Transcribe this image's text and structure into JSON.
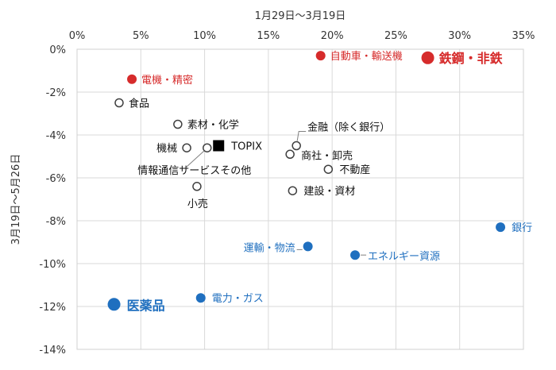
{
  "chart_data": {
    "type": "scatter",
    "title": "",
    "xlabel": "1月29日～3月19日",
    "ylabel": "3月19日～5月26日",
    "x_axis_position": "top",
    "xlim": [
      0,
      35
    ],
    "ylim": [
      -14,
      0
    ],
    "x_ticks": [
      "0%",
      "5%",
      "10%",
      "15%",
      "20%",
      "25%",
      "30%",
      "35%"
    ],
    "y_ticks": [
      "0%",
      "-2%",
      "-4%",
      "-6%",
      "-8%",
      "-10%",
      "-12%",
      "-14%"
    ],
    "grid": true,
    "colors": {
      "gray": "#404040",
      "red": "#d62b2b",
      "blue": "#1f6fbf",
      "black": "#000000"
    },
    "points": [
      {
        "label": "鉄鋼・非鉄",
        "x": 27.5,
        "y": -0.4,
        "group": "red",
        "size": "large"
      },
      {
        "label": "自動車・輸送機",
        "x": 19.1,
        "y": -0.3,
        "group": "red",
        "size": "small"
      },
      {
        "label": "電機・精密",
        "x": 4.3,
        "y": -1.4,
        "group": "red",
        "size": "small"
      },
      {
        "label": "食品",
        "x": 3.3,
        "y": -2.5,
        "group": "gray",
        "size": "small"
      },
      {
        "label": "素材・化学",
        "x": 7.9,
        "y": -3.5,
        "group": "gray",
        "size": "small"
      },
      {
        "label": "機械",
        "x": 8.6,
        "y": -4.6,
        "group": "gray",
        "size": "small"
      },
      {
        "label": "情報通信サービスその他",
        "x": 10.2,
        "y": -4.6,
        "group": "gray",
        "size": "small"
      },
      {
        "label": "TOPIX",
        "x": 11.1,
        "y": -4.5,
        "group": "black",
        "size": "small"
      },
      {
        "label": "小売",
        "x": 9.4,
        "y": -6.4,
        "group": "gray",
        "size": "small"
      },
      {
        "label": "金融（除く銀行）",
        "x": 17.2,
        "y": -4.5,
        "group": "gray",
        "size": "small"
      },
      {
        "label": "商社・卸売",
        "x": 16.7,
        "y": -4.9,
        "group": "gray",
        "size": "small"
      },
      {
        "label": "不動産",
        "x": 19.7,
        "y": -5.6,
        "group": "gray",
        "size": "small"
      },
      {
        "label": "建設・資材",
        "x": 16.9,
        "y": -6.6,
        "group": "gray",
        "size": "small"
      },
      {
        "label": "銀行",
        "x": 33.2,
        "y": -8.3,
        "group": "blue",
        "size": "small"
      },
      {
        "label": "運輸・物流",
        "x": 18.1,
        "y": -9.2,
        "group": "blue",
        "size": "small"
      },
      {
        "label": "エネルギー資源",
        "x": 21.8,
        "y": -9.6,
        "group": "blue",
        "size": "small"
      },
      {
        "label": "電力・ガス",
        "x": 9.7,
        "y": -11.6,
        "group": "blue",
        "size": "small"
      },
      {
        "label": "医薬品",
        "x": 2.9,
        "y": -11.9,
        "group": "blue",
        "size": "large"
      }
    ]
  }
}
